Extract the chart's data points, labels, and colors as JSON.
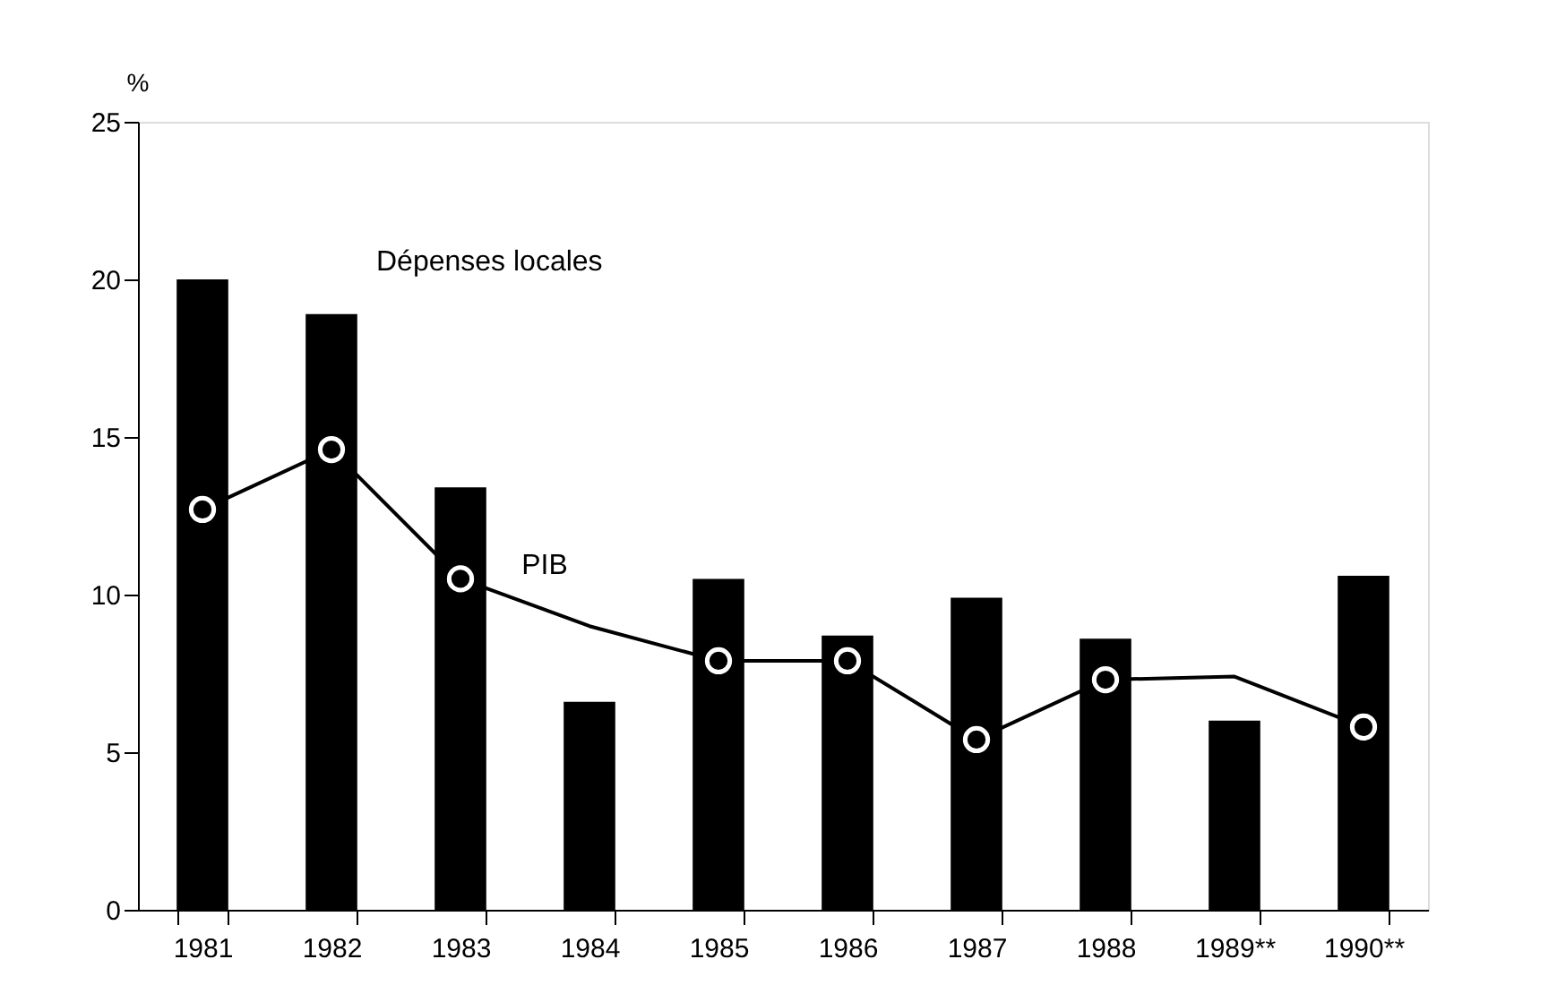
{
  "chart_data": {
    "type": "bar",
    "ylabel": "%",
    "categories": [
      "1981",
      "1982",
      "1983",
      "1984",
      "1985",
      "1986",
      "1987",
      "1988",
      "1989**",
      "1990**"
    ],
    "series": [
      {
        "name": "Dépenses locales",
        "color": "#000000",
        "values": [
          20.0,
          18.9,
          13.4,
          6.6,
          10.5,
          8.7,
          9.9,
          8.6,
          6.0,
          10.6
        ]
      },
      {
        "name": "PIB",
        "type": "line",
        "color": "#000000",
        "marker": "none",
        "line_style": "solid",
        "values": [
          12.7,
          14.6,
          10.5,
          9.0,
          7.9,
          7.9,
          5.4,
          7.3,
          7.4,
          5.8
        ]
      },
      {
        "type": "scatter",
        "color": "#ffffff",
        "marker": "circle",
        "values": [
          12.7,
          14.6,
          10.5,
          null,
          7.9,
          7.9,
          5.4,
          7.3,
          null,
          5.8
        ]
      }
    ],
    "ylim": [
      0,
      25
    ],
    "yticks": [
      0,
      5,
      10,
      15,
      20,
      25
    ],
    "grid": false
  }
}
